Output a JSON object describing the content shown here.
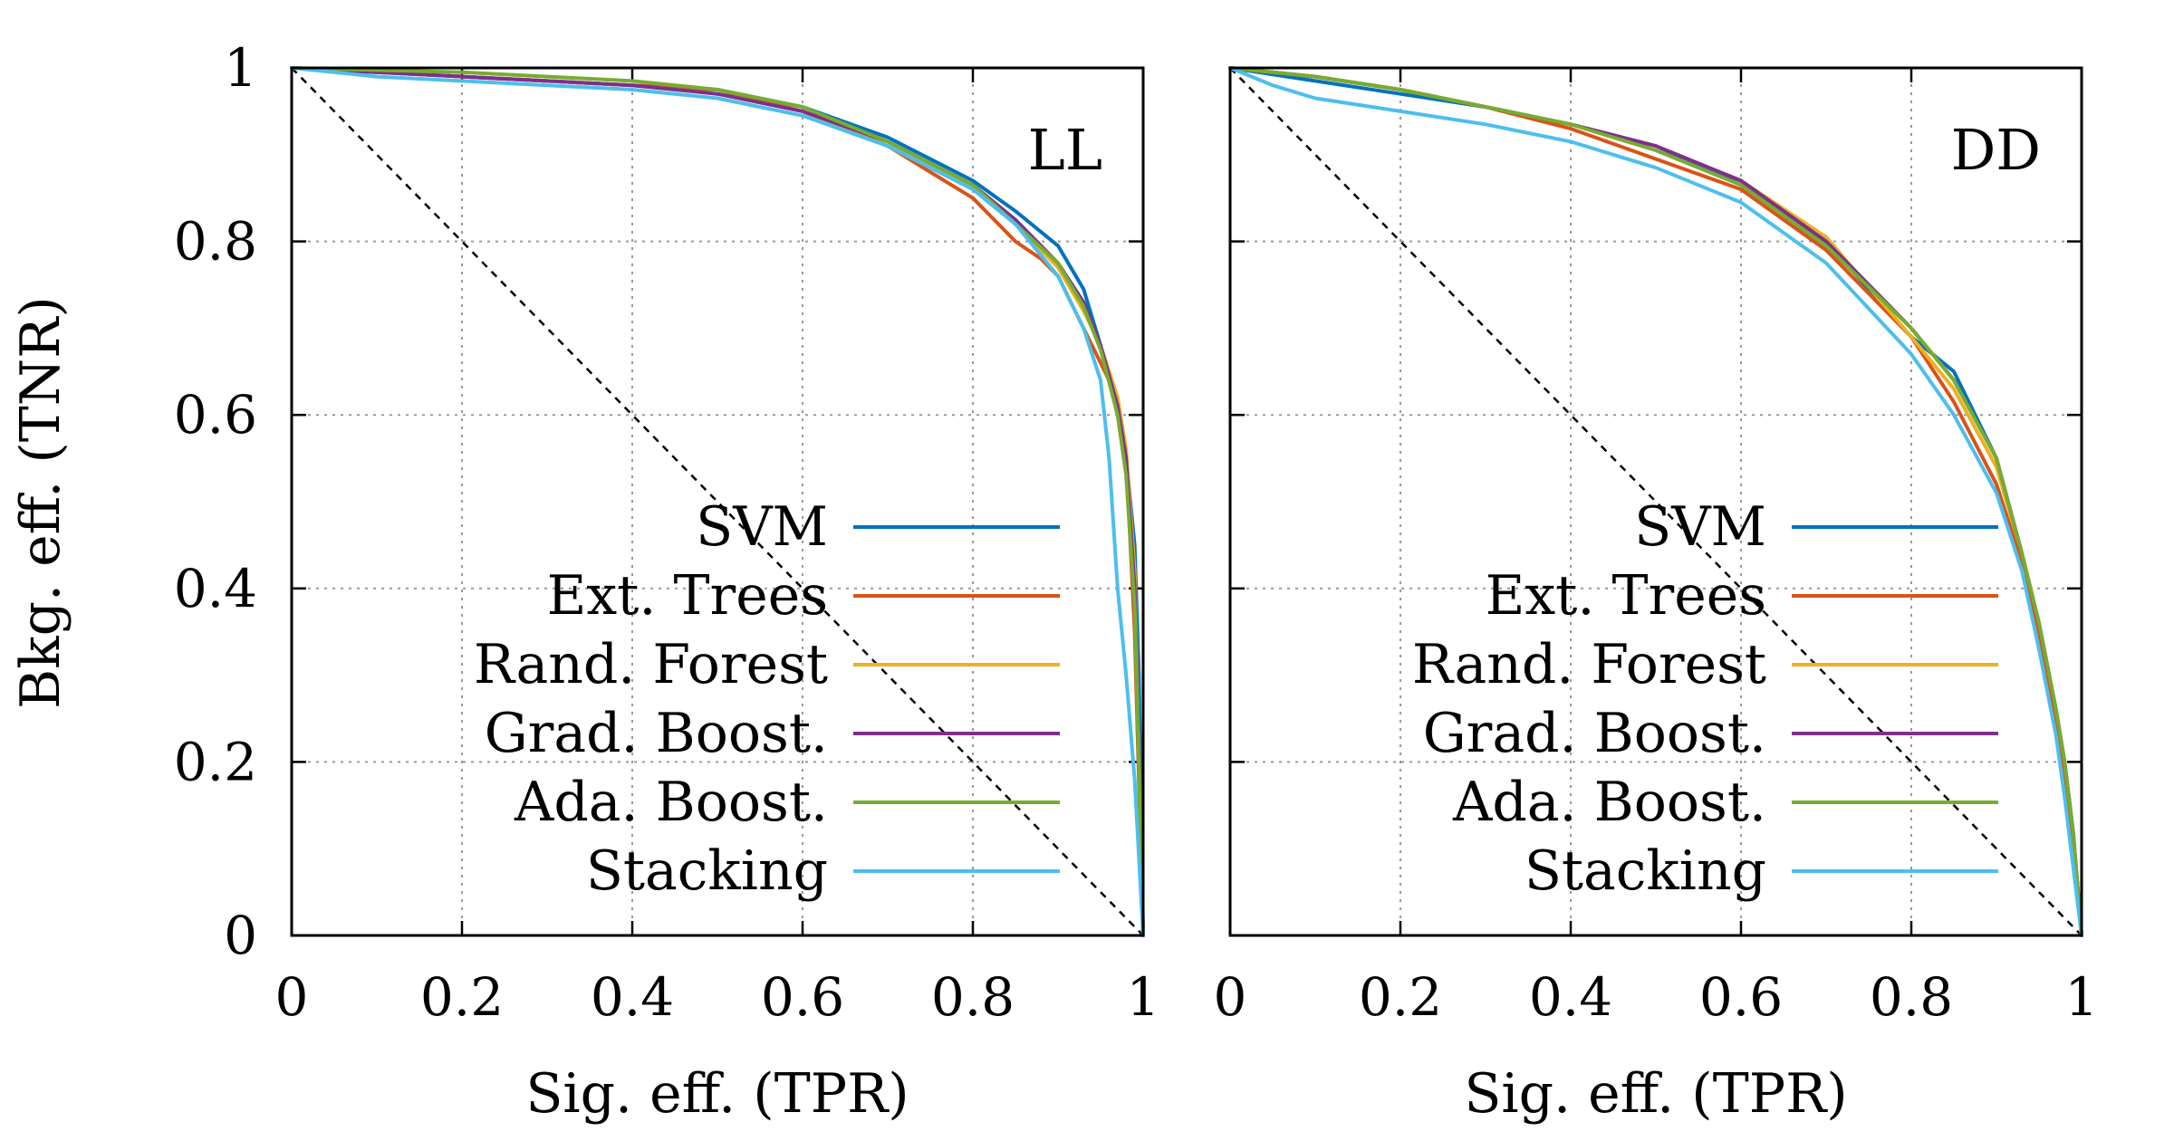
{
  "colors": {
    "SVM": "#0072bd",
    "Ext. Trees": "#d95319",
    "Rand. Forest": "#edb120",
    "Grad. Boost.": "#7e2f8e",
    "Ada. Boost.": "#77ac30",
    "Stacking": "#4dbeee"
  },
  "chart_data": [
    {
      "type": "line",
      "panel_label": "LL",
      "xlabel": "Sig. eff. (TPR)",
      "ylabel": "Bkg. eff. (TNR)",
      "xlim": [
        0,
        1
      ],
      "ylim": [
        0,
        1
      ],
      "xticks": [
        "0",
        "0.2",
        "0.4",
        "0.6",
        "0.8",
        "1"
      ],
      "yticks": [
        "0",
        "0.2",
        "0.4",
        "0.6",
        "0.8",
        "1"
      ],
      "grid": true,
      "legend": "bottom-right",
      "reference_line": "diagonal y = 1 - x",
      "series": [
        {
          "name": "SVM",
          "x": [
            0,
            0.2,
            0.4,
            0.5,
            0.6,
            0.7,
            0.8,
            0.85,
            0.9,
            0.93,
            0.95,
            0.97,
            0.98,
            0.99,
            0.995,
            1.0
          ],
          "y": [
            1.0,
            0.99,
            0.98,
            0.975,
            0.955,
            0.92,
            0.87,
            0.835,
            0.795,
            0.745,
            0.68,
            0.6,
            0.55,
            0.45,
            0.3,
            0.0
          ]
        },
        {
          "name": "Ext. Trees",
          "x": [
            0,
            0.2,
            0.4,
            0.5,
            0.6,
            0.7,
            0.8,
            0.85,
            0.88,
            0.9,
            0.92,
            0.94,
            0.96,
            0.97,
            0.98,
            0.99,
            1.0
          ],
          "y": [
            1.0,
            0.99,
            0.98,
            0.975,
            0.95,
            0.91,
            0.85,
            0.8,
            0.78,
            0.76,
            0.72,
            0.68,
            0.64,
            0.6,
            0.55,
            0.35,
            0.0
          ]
        },
        {
          "name": "Rand. Forest",
          "x": [
            0,
            0.2,
            0.4,
            0.5,
            0.6,
            0.7,
            0.8,
            0.85,
            0.9,
            0.93,
            0.95,
            0.97,
            0.98,
            0.99,
            1.0
          ],
          "y": [
            1.0,
            0.99,
            0.98,
            0.97,
            0.95,
            0.91,
            0.86,
            0.82,
            0.77,
            0.72,
            0.68,
            0.62,
            0.56,
            0.42,
            0.0
          ]
        },
        {
          "name": "Grad. Boost.",
          "x": [
            0,
            0.2,
            0.4,
            0.5,
            0.6,
            0.7,
            0.8,
            0.85,
            0.9,
            0.93,
            0.95,
            0.97,
            0.98,
            0.99,
            1.0
          ],
          "y": [
            1.0,
            0.99,
            0.98,
            0.97,
            0.95,
            0.915,
            0.865,
            0.825,
            0.775,
            0.73,
            0.68,
            0.61,
            0.55,
            0.4,
            0.0
          ]
        },
        {
          "name": "Ada. Boost.",
          "x": [
            0,
            0.2,
            0.4,
            0.5,
            0.6,
            0.7,
            0.8,
            0.85,
            0.9,
            0.93,
            0.95,
            0.97,
            0.98,
            0.99,
            1.0
          ],
          "y": [
            1.0,
            0.995,
            0.985,
            0.975,
            0.955,
            0.915,
            0.865,
            0.82,
            0.775,
            0.725,
            0.675,
            0.6,
            0.53,
            0.38,
            0.0
          ]
        },
        {
          "name": "Stacking",
          "x": [
            0,
            0.1,
            0.2,
            0.4,
            0.5,
            0.6,
            0.7,
            0.8,
            0.85,
            0.9,
            0.93,
            0.95,
            0.96,
            0.97,
            0.98,
            0.99,
            1.0
          ],
          "y": [
            1.0,
            0.99,
            0.985,
            0.975,
            0.965,
            0.945,
            0.91,
            0.86,
            0.82,
            0.76,
            0.7,
            0.64,
            0.55,
            0.4,
            0.3,
            0.18,
            0.0
          ]
        }
      ]
    },
    {
      "type": "line",
      "panel_label": "DD",
      "xlabel": "Sig. eff. (TPR)",
      "ylabel": "",
      "xlim": [
        0,
        1
      ],
      "ylim": [
        0,
        1
      ],
      "xticks": [
        "0",
        "0.2",
        "0.4",
        "0.6",
        "0.8",
        "1"
      ],
      "yticks": [],
      "grid": true,
      "legend": "bottom-right",
      "reference_line": "diagonal y = 1 - x",
      "series": [
        {
          "name": "SVM",
          "x": [
            0,
            0.1,
            0.2,
            0.3,
            0.4,
            0.5,
            0.6,
            0.7,
            0.8,
            0.85,
            0.9,
            0.93,
            0.95,
            0.97,
            0.98,
            0.99,
            1.0
          ],
          "y": [
            1.0,
            0.985,
            0.97,
            0.955,
            0.935,
            0.91,
            0.865,
            0.8,
            0.69,
            0.65,
            0.55,
            0.44,
            0.35,
            0.26,
            0.2,
            0.12,
            0.0
          ]
        },
        {
          "name": "Ext. Trees",
          "x": [
            0,
            0.1,
            0.2,
            0.3,
            0.4,
            0.5,
            0.6,
            0.7,
            0.8,
            0.85,
            0.9,
            0.93,
            0.95,
            0.97,
            0.98,
            0.99,
            1.0
          ],
          "y": [
            1.0,
            0.99,
            0.975,
            0.955,
            0.93,
            0.895,
            0.86,
            0.79,
            0.69,
            0.615,
            0.52,
            0.43,
            0.35,
            0.25,
            0.19,
            0.11,
            0.0
          ]
        },
        {
          "name": "Rand. Forest",
          "x": [
            0,
            0.1,
            0.2,
            0.3,
            0.4,
            0.5,
            0.6,
            0.7,
            0.8,
            0.85,
            0.9,
            0.93,
            0.95,
            0.97,
            0.98,
            0.99,
            1.0
          ],
          "y": [
            1.0,
            0.99,
            0.975,
            0.955,
            0.935,
            0.91,
            0.87,
            0.805,
            0.69,
            0.63,
            0.54,
            0.44,
            0.36,
            0.26,
            0.2,
            0.12,
            0.0
          ]
        },
        {
          "name": "Grad. Boost.",
          "x": [
            0,
            0.1,
            0.2,
            0.3,
            0.4,
            0.5,
            0.6,
            0.7,
            0.8,
            0.85,
            0.9,
            0.93,
            0.95,
            0.97,
            0.98,
            0.99,
            1.0
          ],
          "y": [
            1.0,
            0.99,
            0.975,
            0.955,
            0.935,
            0.91,
            0.87,
            0.8,
            0.7,
            0.64,
            0.55,
            0.44,
            0.36,
            0.26,
            0.2,
            0.12,
            0.0
          ]
        },
        {
          "name": "Ada. Boost.",
          "x": [
            0,
            0.1,
            0.2,
            0.3,
            0.4,
            0.5,
            0.6,
            0.7,
            0.8,
            0.85,
            0.9,
            0.93,
            0.95,
            0.97,
            0.98,
            0.99,
            1.0
          ],
          "y": [
            1.0,
            0.99,
            0.975,
            0.955,
            0.935,
            0.905,
            0.865,
            0.795,
            0.7,
            0.64,
            0.55,
            0.44,
            0.36,
            0.26,
            0.2,
            0.12,
            0.0
          ]
        },
        {
          "name": "Stacking",
          "x": [
            0,
            0.05,
            0.1,
            0.2,
            0.3,
            0.4,
            0.5,
            0.6,
            0.7,
            0.8,
            0.85,
            0.9,
            0.93,
            0.95,
            0.97,
            0.98,
            0.99,
            1.0
          ],
          "y": [
            1.0,
            0.98,
            0.965,
            0.95,
            0.935,
            0.915,
            0.885,
            0.845,
            0.775,
            0.67,
            0.6,
            0.51,
            0.42,
            0.33,
            0.23,
            0.16,
            0.08,
            0.0
          ]
        }
      ]
    }
  ]
}
